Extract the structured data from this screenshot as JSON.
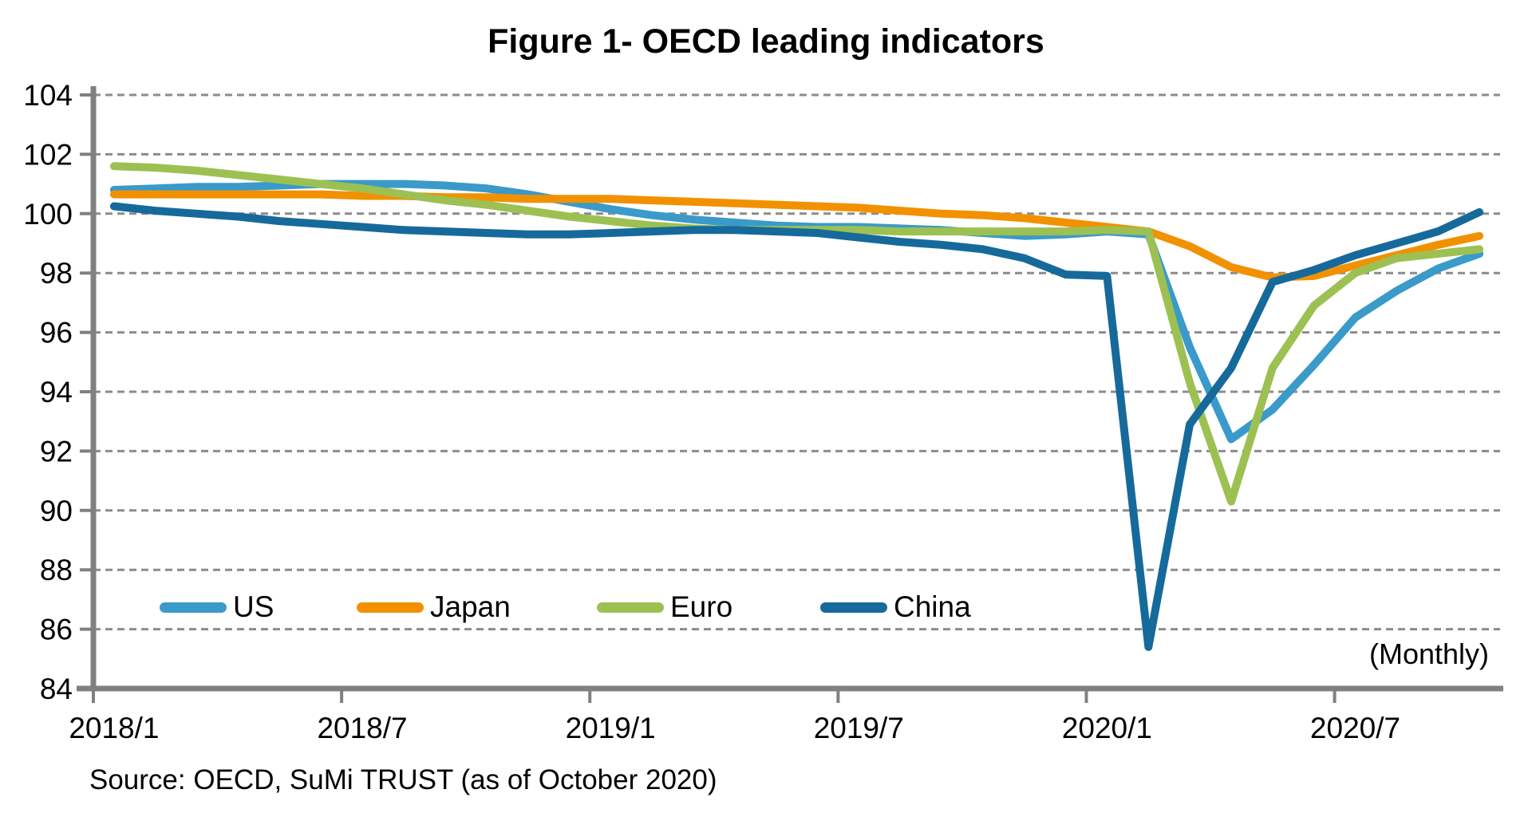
{
  "title": "Figure 1- OECD leading indicators",
  "monthly_note": "(Monthly)",
  "source_note": "Source: OECD, SuMi TRUST (as of October 2020)",
  "chart_data": {
    "type": "line",
    "title": "Figure 1- OECD leading indicators",
    "xlabel": "",
    "ylabel": "",
    "ylim": [
      84,
      104
    ],
    "y_tick_step": 2,
    "grid": "horizontal dashed",
    "grid_color": "#8C8C8C",
    "axis_color": "#808080",
    "legend_position": "inside bottom-left row",
    "categories": [
      "2018/1",
      "2018/2",
      "2018/3",
      "2018/4",
      "2018/5",
      "2018/6",
      "2018/7",
      "2018/8",
      "2018/9",
      "2018/10",
      "2018/11",
      "2018/12",
      "2019/1",
      "2019/2",
      "2019/3",
      "2019/4",
      "2019/5",
      "2019/6",
      "2019/7",
      "2019/8",
      "2019/9",
      "2019/10",
      "2019/11",
      "2019/12",
      "2020/1",
      "2020/2",
      "2020/3",
      "2020/4",
      "2020/5",
      "2020/6",
      "2020/7",
      "2020/8",
      "2020/9",
      "2020/10"
    ],
    "x_tick_indices": [
      0,
      6,
      12,
      18,
      24,
      30
    ],
    "x_tick_labels": [
      "2018/1",
      "2018/7",
      "2019/1",
      "2019/7",
      "2020/1",
      "2020/7"
    ],
    "series": [
      {
        "name": "US",
        "color": "#3A9AC9",
        "values": [
          100.8,
          100.85,
          100.9,
          100.9,
          100.95,
          101.0,
          101.0,
          101.0,
          100.95,
          100.85,
          100.65,
          100.4,
          100.15,
          99.95,
          99.8,
          99.7,
          99.6,
          99.55,
          99.55,
          99.5,
          99.45,
          99.35,
          99.25,
          99.3,
          99.4,
          99.3,
          95.5,
          92.4,
          93.4,
          94.9,
          96.5,
          97.4,
          98.15,
          98.65
        ]
      },
      {
        "name": "Japan",
        "color": "#F29100",
        "values": [
          100.65,
          100.65,
          100.65,
          100.65,
          100.65,
          100.65,
          100.6,
          100.6,
          100.55,
          100.55,
          100.5,
          100.5,
          100.5,
          100.45,
          100.4,
          100.35,
          100.3,
          100.25,
          100.2,
          100.1,
          100.0,
          99.95,
          99.85,
          99.7,
          99.55,
          99.4,
          98.9,
          98.2,
          97.85,
          97.9,
          98.25,
          98.6,
          98.95,
          99.25
        ]
      },
      {
        "name": "Euro",
        "color": "#9CC152",
        "values": [
          101.6,
          101.55,
          101.45,
          101.3,
          101.15,
          101.0,
          100.85,
          100.65,
          100.45,
          100.3,
          100.1,
          99.9,
          99.75,
          99.6,
          99.5,
          99.45,
          99.45,
          99.45,
          99.45,
          99.4,
          99.4,
          99.4,
          99.4,
          99.4,
          99.45,
          99.4,
          94.3,
          90.3,
          94.8,
          96.9,
          98.0,
          98.5,
          98.65,
          98.8
        ]
      },
      {
        "name": "China",
        "color": "#166A9B",
        "values": [
          100.25,
          100.1,
          100.0,
          99.9,
          99.75,
          99.65,
          99.55,
          99.45,
          99.4,
          99.35,
          99.3,
          99.3,
          99.35,
          99.4,
          99.45,
          99.45,
          99.4,
          99.35,
          99.2,
          99.05,
          98.95,
          98.8,
          98.5,
          97.95,
          97.9,
          85.4,
          92.9,
          94.8,
          97.7,
          98.1,
          98.6,
          99.0,
          99.4,
          100.05
        ]
      }
    ]
  }
}
